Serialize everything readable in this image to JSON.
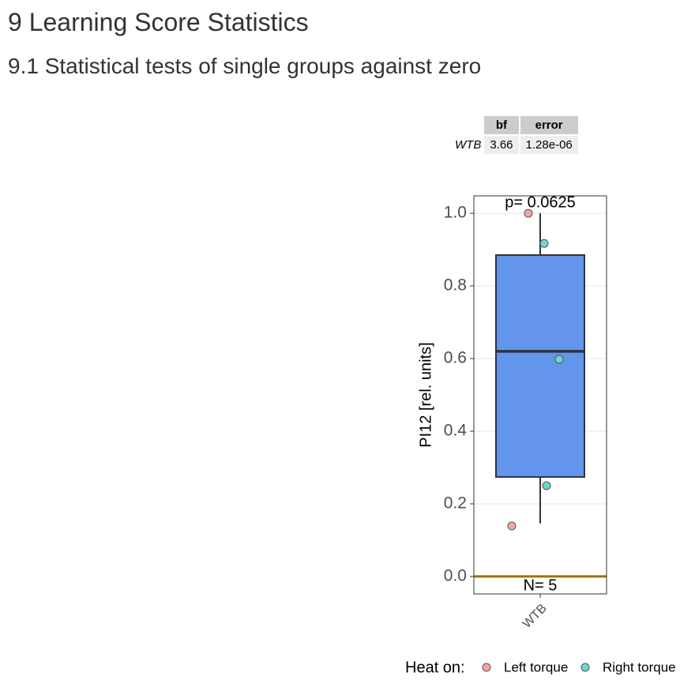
{
  "headings": [
    "9 Learning Score Statistics",
    "9.1 Statistical tests of single groups against zero"
  ],
  "table": {
    "columns": [
      "bf",
      "error"
    ],
    "rows": [
      {
        "label": "WTB",
        "cells": [
          "3.66",
          "1.28e-06"
        ]
      }
    ]
  },
  "chart_data": {
    "type": "box",
    "y_label": "PI12 [rel. units]",
    "categories": [
      "WTB"
    ],
    "box": {
      "whisker_low": 0.146,
      "q1": 0.274,
      "median": 0.62,
      "q3": 0.885,
      "whisker_high": 1.0
    },
    "box_color": "#6495ed",
    "series": [
      {
        "name": "Left torque",
        "color": "#f4a6a0",
        "values": [
          1.0,
          0.139
        ]
      },
      {
        "name": "Right torque",
        "color": "#6cd6d0",
        "values": [
          0.917,
          0.598,
          0.25
        ]
      }
    ],
    "legend_title": "Heat on:",
    "legend": "bottom",
    "annotations": [
      "p= 0.0625",
      "N= 5"
    ],
    "reference_line": {
      "value": 0,
      "color": "#9a7400"
    },
    "ylim": [
      -0.048,
      1.048
    ],
    "yticks": [
      {
        "value": 0,
        "label": "0.0"
      },
      0.2,
      0.4,
      0.6,
      0.8,
      {
        "value": 1,
        "label": "1.0"
      }
    ],
    "grid": true
  }
}
